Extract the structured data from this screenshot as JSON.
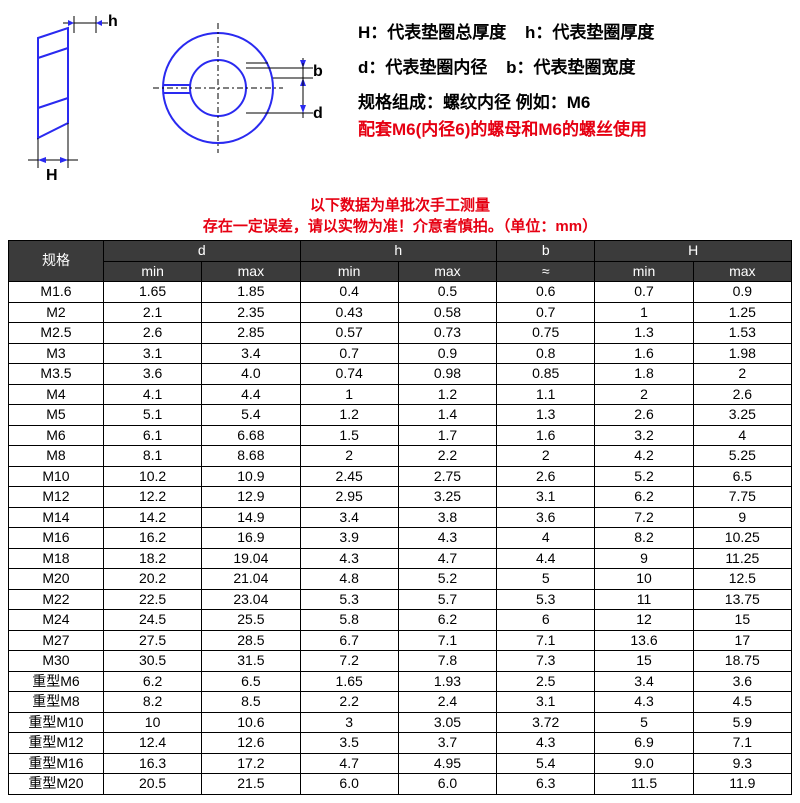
{
  "colors": {
    "red": "#e60012",
    "blue": "#2a2af0",
    "header_bg": "#3b3b3b",
    "header_fg": "#ffffff",
    "text": "#000000"
  },
  "diagram": {
    "labels": {
      "h": "h",
      "b": "b",
      "d": "d",
      "H": "H"
    }
  },
  "legend": {
    "H": "H：代表垫圈总厚度",
    "h": "h：代表垫圈厚度",
    "d": "d：代表垫圈内径",
    "b": "b：代表垫圈宽度"
  },
  "spec_line": "规格组成：螺纹内径 例如：M6",
  "red_line": "配套M6(内径6)的螺母和M6的螺丝使用",
  "notice": {
    "line1": "以下数据为单批次手工测量",
    "line2": "存在一定误差，请以实物为准！介意者慎拍。（单位：mm）"
  },
  "table": {
    "spec_header": "规格",
    "groups": [
      {
        "label": "d",
        "subs": [
          "min",
          "max"
        ]
      },
      {
        "label": "h",
        "subs": [
          "min",
          "max"
        ]
      },
      {
        "label": "b",
        "subs": [
          "≈"
        ]
      },
      {
        "label": "H",
        "subs": [
          "min",
          "max"
        ]
      }
    ],
    "rows": [
      {
        "spec": "M1.6",
        "cells": [
          "1.65",
          "1.85",
          "0.4",
          "0.5",
          "0.6",
          "0.7",
          "0.9"
        ]
      },
      {
        "spec": "M2",
        "cells": [
          "2.1",
          "2.35",
          "0.43",
          "0.58",
          "0.7",
          "1",
          "1.25"
        ]
      },
      {
        "spec": "M2.5",
        "cells": [
          "2.6",
          "2.85",
          "0.57",
          "0.73",
          "0.75",
          "1.3",
          "1.53"
        ]
      },
      {
        "spec": "M3",
        "cells": [
          "3.1",
          "3.4",
          "0.7",
          "0.9",
          "0.8",
          "1.6",
          "1.98"
        ]
      },
      {
        "spec": "M3.5",
        "cells": [
          "3.6",
          "4.0",
          "0.74",
          "0.98",
          "0.85",
          "1.8",
          "2"
        ]
      },
      {
        "spec": "M4",
        "cells": [
          "4.1",
          "4.4",
          "1",
          "1.2",
          "1.1",
          "2",
          "2.6"
        ]
      },
      {
        "spec": "M5",
        "cells": [
          "5.1",
          "5.4",
          "1.2",
          "1.4",
          "1.3",
          "2.6",
          "3.25"
        ]
      },
      {
        "spec": "M6",
        "cells": [
          "6.1",
          "6.68",
          "1.5",
          "1.7",
          "1.6",
          "3.2",
          "4"
        ]
      },
      {
        "spec": "M8",
        "cells": [
          "8.1",
          "8.68",
          "2",
          "2.2",
          "2",
          "4.2",
          "5.25"
        ]
      },
      {
        "spec": "M10",
        "cells": [
          "10.2",
          "10.9",
          "2.45",
          "2.75",
          "2.6",
          "5.2",
          "6.5"
        ]
      },
      {
        "spec": "M12",
        "cells": [
          "12.2",
          "12.9",
          "2.95",
          "3.25",
          "3.1",
          "6.2",
          "7.75"
        ]
      },
      {
        "spec": "M14",
        "cells": [
          "14.2",
          "14.9",
          "3.4",
          "3.8",
          "3.6",
          "7.2",
          "9"
        ]
      },
      {
        "spec": "M16",
        "cells": [
          "16.2",
          "16.9",
          "3.9",
          "4.3",
          "4",
          "8.2",
          "10.25"
        ]
      },
      {
        "spec": "M18",
        "cells": [
          "18.2",
          "19.04",
          "4.3",
          "4.7",
          "4.4",
          "9",
          "11.25"
        ]
      },
      {
        "spec": "M20",
        "cells": [
          "20.2",
          "21.04",
          "4.8",
          "5.2",
          "5",
          "10",
          "12.5"
        ]
      },
      {
        "spec": "M22",
        "cells": [
          "22.5",
          "23.04",
          "5.3",
          "5.7",
          "5.3",
          "11",
          "13.75"
        ]
      },
      {
        "spec": "M24",
        "cells": [
          "24.5",
          "25.5",
          "5.8",
          "6.2",
          "6",
          "12",
          "15"
        ]
      },
      {
        "spec": "M27",
        "cells": [
          "27.5",
          "28.5",
          "6.7",
          "7.1",
          "7.1",
          "13.6",
          "17"
        ]
      },
      {
        "spec": "M30",
        "cells": [
          "30.5",
          "31.5",
          "7.2",
          "7.8",
          "7.3",
          "15",
          "18.75"
        ]
      },
      {
        "spec": "重型M6",
        "cells": [
          "6.2",
          "6.5",
          "1.65",
          "1.93",
          "2.5",
          "3.4",
          "3.6"
        ]
      },
      {
        "spec": "重型M8",
        "cells": [
          "8.2",
          "8.5",
          "2.2",
          "2.4",
          "3.1",
          "4.3",
          "4.5"
        ]
      },
      {
        "spec": "重型M10",
        "cells": [
          "10",
          "10.6",
          "3",
          "3.05",
          "3.72",
          "5",
          "5.9"
        ]
      },
      {
        "spec": "重型M12",
        "cells": [
          "12.4",
          "12.6",
          "3.5",
          "3.7",
          "4.3",
          "6.9",
          "7.1"
        ]
      },
      {
        "spec": "重型M16",
        "cells": [
          "16.3",
          "17.2",
          "4.7",
          "4.95",
          "5.4",
          "9.0",
          "9.3"
        ]
      },
      {
        "spec": "重型M20",
        "cells": [
          "20.5",
          "21.5",
          "6.0",
          "6.0",
          "6.3",
          "11.5",
          "11.9"
        ]
      }
    ],
    "col_widths_pct": [
      12,
      12.5,
      12.5,
      12.5,
      12.5,
      12.5,
      12.5,
      12.5
    ]
  }
}
